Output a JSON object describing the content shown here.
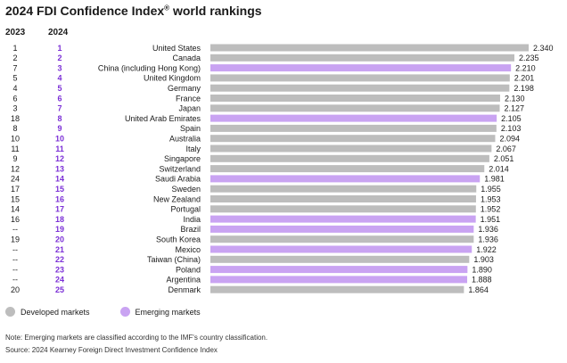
{
  "page": {
    "title": "2024 FDI Confidence Index",
    "title_mark": "®",
    "title_suffix": " world rankings",
    "col_2023": "2023",
    "col_2024": "2024",
    "note": "Note: Emerging markets are classified according to the IMF's country classification.",
    "source": "Source: 2024 Kearney Foreign Direct Investment Confidence Index"
  },
  "colors": {
    "developed": "#bdbdbd",
    "emerging": "#c9a3f2",
    "rank2024_text": "#7b2fd6"
  },
  "chart_data": {
    "type": "bar",
    "orientation": "horizontal",
    "legend": [
      {
        "key": "developed",
        "label": "Developed markets"
      },
      {
        "key": "emerging",
        "label": "Emerging markets"
      }
    ],
    "rows": [
      {
        "rank2023": "1",
        "rank2024": "1",
        "country": "United States",
        "value": "2.340",
        "group": "developed"
      },
      {
        "rank2023": "2",
        "rank2024": "2",
        "country": "Canada",
        "value": "2.235",
        "group": "developed"
      },
      {
        "rank2023": "7",
        "rank2024": "3",
        "country": "China (including Hong Kong)",
        "value": "2.210",
        "group": "emerging"
      },
      {
        "rank2023": "5",
        "rank2024": "4",
        "country": "United Kingdom",
        "value": "2.201",
        "group": "developed"
      },
      {
        "rank2023": "4",
        "rank2024": "5",
        "country": "Germany",
        "value": "2.198",
        "group": "developed"
      },
      {
        "rank2023": "6",
        "rank2024": "6",
        "country": "France",
        "value": "2.130",
        "group": "developed"
      },
      {
        "rank2023": "3",
        "rank2024": "7",
        "country": "Japan",
        "value": "2.127",
        "group": "developed"
      },
      {
        "rank2023": "18",
        "rank2024": "8",
        "country": "United Arab Emirates",
        "value": "2.105",
        "group": "emerging"
      },
      {
        "rank2023": "8",
        "rank2024": "9",
        "country": "Spain",
        "value": "2.103",
        "group": "developed"
      },
      {
        "rank2023": "10",
        "rank2024": "10",
        "country": "Australia",
        "value": "2.094",
        "group": "developed"
      },
      {
        "rank2023": "11",
        "rank2024": "11",
        "country": "Italy",
        "value": "2.067",
        "group": "developed"
      },
      {
        "rank2023": "9",
        "rank2024": "12",
        "country": "Singapore",
        "value": "2.051",
        "group": "developed"
      },
      {
        "rank2023": "12",
        "rank2024": "13",
        "country": "Switzerland",
        "value": "2.014",
        "group": "developed"
      },
      {
        "rank2023": "24",
        "rank2024": "14",
        "country": "Saudi Arabia",
        "value": "1.981",
        "group": "emerging"
      },
      {
        "rank2023": "17",
        "rank2024": "15",
        "country": "Sweden",
        "value": "1.955",
        "group": "developed"
      },
      {
        "rank2023": "15",
        "rank2024": "16",
        "country": "New Zealand",
        "value": "1.953",
        "group": "developed"
      },
      {
        "rank2023": "14",
        "rank2024": "17",
        "country": "Portugal",
        "value": "1.952",
        "group": "developed"
      },
      {
        "rank2023": "16",
        "rank2024": "18",
        "country": "India",
        "value": "1.951",
        "group": "emerging"
      },
      {
        "rank2023": "--",
        "rank2024": "19",
        "country": "Brazil",
        "value": "1.936",
        "group": "emerging"
      },
      {
        "rank2023": "19",
        "rank2024": "20",
        "country": "South Korea",
        "value": "1.936",
        "group": "developed"
      },
      {
        "rank2023": "--",
        "rank2024": "21",
        "country": "Mexico",
        "value": "1.922",
        "group": "emerging"
      },
      {
        "rank2023": "--",
        "rank2024": "22",
        "country": "Taiwan (China)",
        "value": "1.903",
        "group": "developed"
      },
      {
        "rank2023": "--",
        "rank2024": "23",
        "country": "Poland",
        "value": "1.890",
        "group": "emerging"
      },
      {
        "rank2023": "--",
        "rank2024": "24",
        "country": "Argentina",
        "value": "1.888",
        "group": "emerging"
      },
      {
        "rank2023": "20",
        "rank2024": "25",
        "country": "Denmark",
        "value": "1.864",
        "group": "developed"
      }
    ]
  }
}
